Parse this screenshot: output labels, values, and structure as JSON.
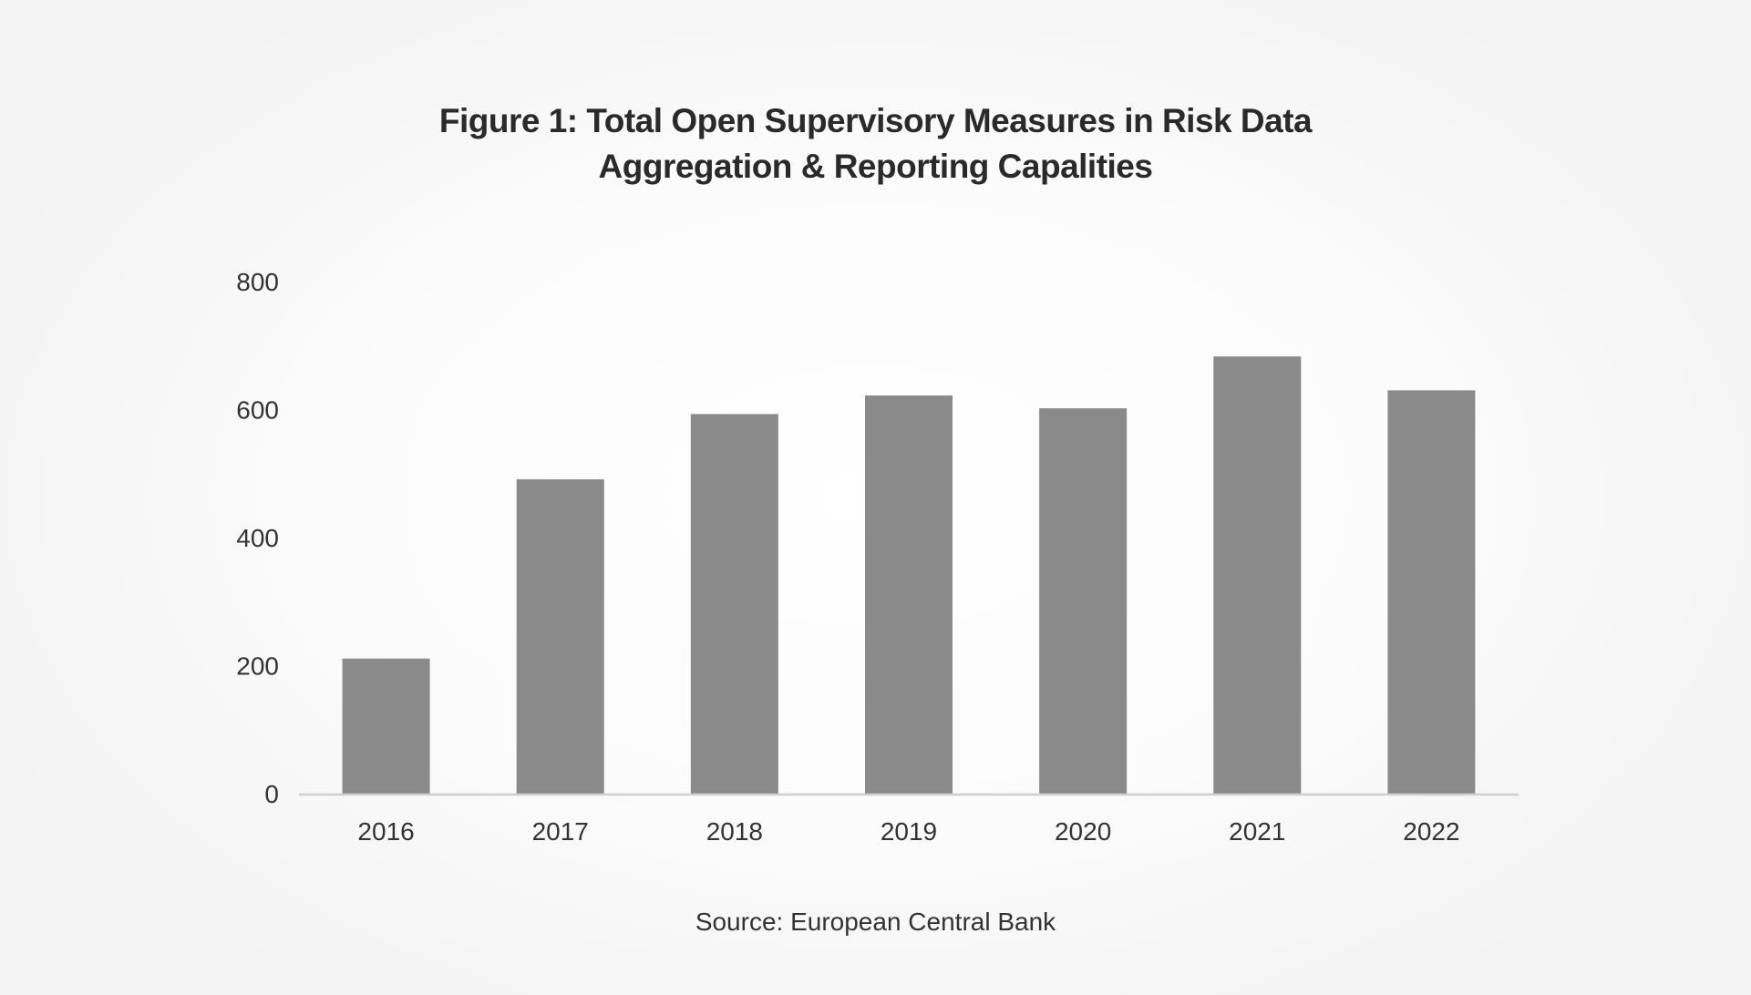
{
  "chart_data": {
    "type": "bar",
    "title_line1": "Figure 1: Total Open Supervisory Measures in Risk Data",
    "title_line2": "Aggregation & Reporting Capalities",
    "categories": [
      "2016",
      "2017",
      "2018",
      "2019",
      "2020",
      "2021",
      "2022"
    ],
    "values": [
      211,
      491,
      593,
      622,
      602,
      683,
      630
    ],
    "ylim": [
      0,
      800
    ],
    "yticks": [
      "0",
      "200",
      "400",
      "600",
      "800"
    ],
    "xlabel": "",
    "ylabel": "",
    "grid": false,
    "legend": "none",
    "bar_color": "#8a8a8a",
    "source": "Source: European Central Bank"
  }
}
